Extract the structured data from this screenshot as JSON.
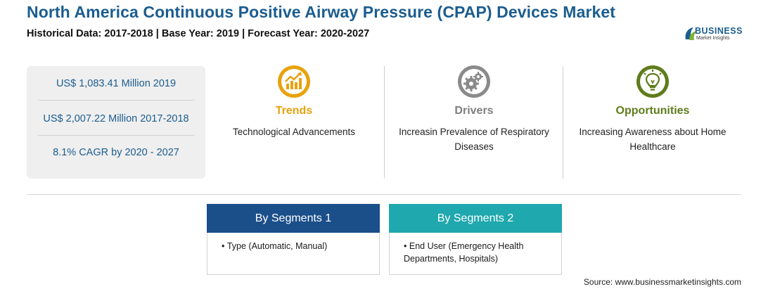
{
  "header": {
    "title": "North America Continuous Positive Airway Pressure (CPAP) Devices Market",
    "subtitle": "Historical Data: 2017-2018 | Base Year: 2019 | Forecast Year: 2020-2027"
  },
  "logo": {
    "name": "BUSINESS",
    "tagline": "Market Insights"
  },
  "stats": [
    "US$ 1,083.41 Million 2019",
    "US$ 2,007.22 Million 2017-2018",
    "8.1% CAGR by 2020 - 2027"
  ],
  "columns": [
    {
      "label": "Trends",
      "text": "Technological Advancements",
      "color": "#e8a20c",
      "icon": "growth-chart-icon"
    },
    {
      "label": "Drivers",
      "text": "Increasin Prevalence of Respiratory Diseases",
      "color": "#7f7f7f",
      "icon": "gears-icon"
    },
    {
      "label": "Opportunities",
      "text": "Increasing Awareness about Home Healthcare",
      "color": "#5e7c1a",
      "icon": "lightbulb-icon"
    }
  ],
  "segments": [
    {
      "title": "By Segments 1",
      "items": [
        "Type (Automatic, Manual)"
      ],
      "color": "#1b4f8a"
    },
    {
      "title": "By Segments 2",
      "items": [
        "End User (Emergency Health Departments, Hospitals)"
      ],
      "color": "#1fa8ad"
    }
  ],
  "source": "Source: www.businessmarketinsights.com"
}
